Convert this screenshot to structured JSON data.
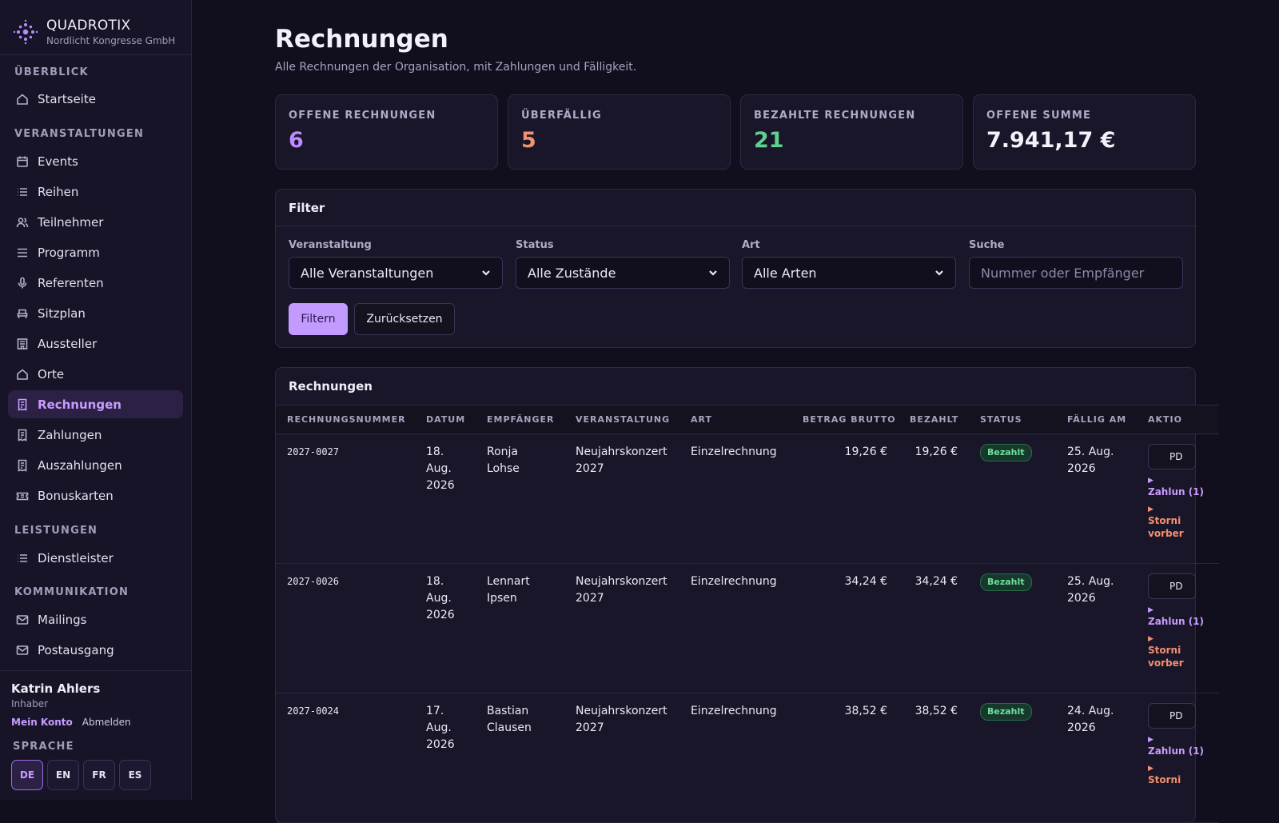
{
  "brand": {
    "name": "QUADROTIX",
    "org": "Nordlicht Kongresse GmbH"
  },
  "sidebar": {
    "sections": [
      {
        "title": "ÜBERBLICK"
      },
      {
        "title": "VERANSTALTUNGEN"
      },
      {
        "title": "LEISTUNGEN"
      },
      {
        "title": "KOMMUNIKATION"
      }
    ],
    "items": [
      {
        "label": "Startseite",
        "icon": "home-icon"
      },
      {
        "label": "Events",
        "icon": "calendar-icon"
      },
      {
        "label": "Reihen",
        "icon": "list-icon"
      },
      {
        "label": "Teilnehmer",
        "icon": "users-icon"
      },
      {
        "label": "Programm",
        "icon": "menu-icon"
      },
      {
        "label": "Referenten",
        "icon": "microphone-icon"
      },
      {
        "label": "Sitzplan",
        "icon": "seat-icon"
      },
      {
        "label": "Aussteller",
        "icon": "store-icon"
      },
      {
        "label": "Orte",
        "icon": "home-icon"
      },
      {
        "label": "Rechnungen",
        "icon": "receipt-icon"
      },
      {
        "label": "Zahlungen",
        "icon": "receipt-icon"
      },
      {
        "label": "Auszahlungen",
        "icon": "receipt-icon"
      },
      {
        "label": "Bonuskarten",
        "icon": "ticket-icon"
      },
      {
        "label": "Dienstleister",
        "icon": "list-icon"
      },
      {
        "label": "Mailings",
        "icon": "mail-icon"
      },
      {
        "label": "Postausgang",
        "icon": "mail-icon"
      }
    ],
    "active": "Rechnungen"
  },
  "user": {
    "name": "Katrin Ahlers",
    "role": "Inhaber",
    "account_link": "Mein Konto",
    "logout_link": "Abmelden"
  },
  "language": {
    "title": "SPRACHE",
    "options": [
      "DE",
      "EN",
      "FR",
      "ES"
    ],
    "selected": "DE"
  },
  "page": {
    "title": "Rechnungen",
    "subtitle": "Alle Rechnungen der Organisation, mit Zahlungen und Fälligkeit."
  },
  "stats": [
    {
      "label": "OFFENE RECHNUNGEN",
      "value": "6",
      "color": "#b98cff"
    },
    {
      "label": "ÜBERFÄLLIG",
      "value": "5",
      "color": "#f2916f"
    },
    {
      "label": "BEZAHLTE RECHNUNGEN",
      "value": "21",
      "color": "#5fd18f"
    },
    {
      "label": "OFFENE SUMME",
      "value": "7.941,17 €",
      "color": "#f4f1fb"
    }
  ],
  "filter": {
    "title": "Filter",
    "event_label": "Veranstaltung",
    "event_value": "Alle Veranstaltungen",
    "status_label": "Status",
    "status_value": "Alle Zustände",
    "type_label": "Art",
    "type_value": "Alle Arten",
    "search_label": "Suche",
    "search_placeholder": "Nummer oder Empfänger",
    "apply_button": "Filtern",
    "reset_button": "Zurücksetzen"
  },
  "table": {
    "title": "Rechnungen",
    "columns": [
      "RECHNUNGSNUMMER",
      "DATUM",
      "EMPFÄNGER",
      "VERANSTALTUNG",
      "ART",
      "BETRAG BRUTTO",
      "BEZAHLT",
      "STATUS",
      "FÄLLIG AM",
      "AKTIO"
    ],
    "rows": [
      {
        "number": "2027-0027",
        "date": "18. Aug. 2026",
        "recipient": "Ronja Lohse",
        "event": "Neujahrskonzert 2027",
        "type": "Einzelrechnung",
        "gross": "19,26 €",
        "paid": "19,26 €",
        "status": "Bezahlt",
        "due": "25. Aug. 2026",
        "pdf": "PD",
        "payments": "Zahlun (1)",
        "storno": "Storni vorber"
      },
      {
        "number": "2027-0026",
        "date": "18. Aug. 2026",
        "recipient": "Lennart Ipsen",
        "event": "Neujahrskonzert 2027",
        "type": "Einzelrechnung",
        "gross": "34,24 €",
        "paid": "34,24 €",
        "status": "Bezahlt",
        "due": "25. Aug. 2026",
        "pdf": "PD",
        "payments": "Zahlun (1)",
        "storno": "Storni vorber"
      },
      {
        "number": "2027-0024",
        "date": "17. Aug. 2026",
        "recipient": "Bastian Clausen",
        "event": "Neujahrskonzert 2027",
        "type": "Einzelrechnung",
        "gross": "38,52 €",
        "paid": "38,52 €",
        "status": "Bezahlt",
        "due": "24. Aug. 2026",
        "pdf": "PD",
        "payments": "Zahlun (1)",
        "storno": "Storni"
      }
    ]
  }
}
